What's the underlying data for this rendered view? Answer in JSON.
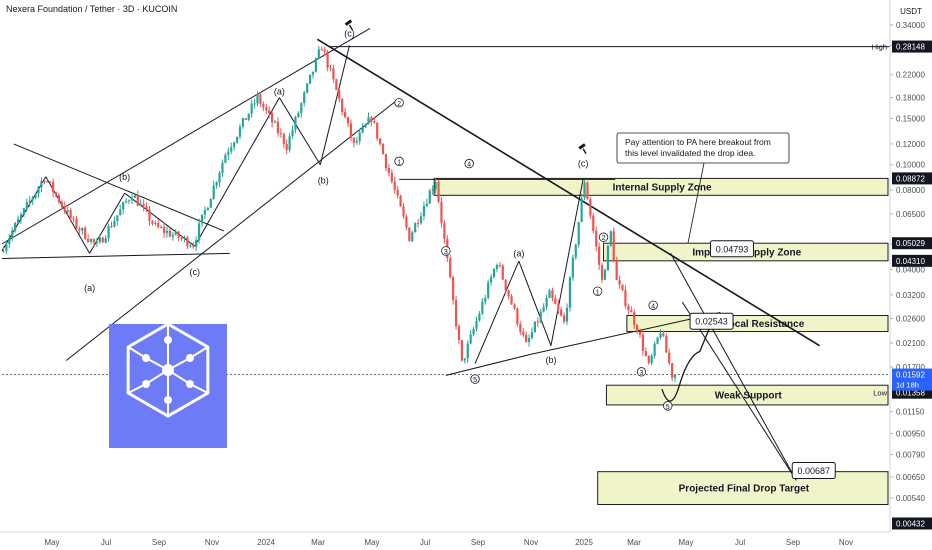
{
  "header": {
    "symbol_title": "Nexera Foundation / Tether · 3D · KUCOIN",
    "currency": "USDT"
  },
  "colors": {
    "up": "#26a69a",
    "down": "#ef5350",
    "zone_fill": "#f1f4c8",
    "zone_border": "#1e1e1e",
    "line": "#131722",
    "tag_bg": "#131722",
    "current_price_bg": "#2962ff",
    "logo": "#6d7cf6"
  },
  "chart_data": {
    "type": "candlestick",
    "y_scale": "log",
    "ylim": [
      0.0043,
      0.34
    ],
    "x_ticks": [
      "May",
      "Jul",
      "Sep",
      "Nov",
      "2024",
      "Mar",
      "May",
      "Jul",
      "Sep",
      "Nov",
      "2025",
      "Mar",
      "May",
      "Jul",
      "Sep",
      "Nov"
    ],
    "y_ticks": [
      0.34,
      0.284,
      0.22,
      0.18,
      0.15,
      0.12,
      0.1,
      0.08,
      0.065,
      0.05,
      0.04,
      0.032,
      0.026,
      0.021,
      0.017,
      0.0115,
      0.0095,
      0.0079,
      0.0065,
      0.0054
    ],
    "y_tick_labels": [
      "0.34000",
      "0.28400",
      "0.22000",
      "0.18000",
      "0.15000",
      "0.12000",
      "0.10000",
      "0.08000",
      "0.06500",
      "0.05000",
      "0.04000",
      "0.03200",
      "0.02600",
      "0.02100",
      "0.01700",
      "0.01150",
      "0.00950",
      "0.00790",
      "0.00650",
      "0.00540"
    ],
    "price_tags": [
      {
        "label": "High",
        "value": "0.28148",
        "price": 0.28148
      },
      {
        "label": "",
        "value": "0.08872",
        "price": 0.08872
      },
      {
        "label": "",
        "value": "0.05029",
        "price": 0.05029
      },
      {
        "label": "",
        "value": "0.04310",
        "price": 0.0431
      },
      {
        "label": "Low",
        "value": "0.01358",
        "price": 0.01358
      },
      {
        "label": "",
        "value": "0.00432",
        "price": 0.00432
      }
    ],
    "current_price": {
      "value": "0.01592",
      "countdown": "1d 18h",
      "price": 0.01592
    },
    "price_path": [
      {
        "t": 0,
        "p": 0.047
      },
      {
        "t": 15,
        "p": 0.09
      },
      {
        "t": 25,
        "p": 0.06
      },
      {
        "t": 33,
        "p": 0.049
      },
      {
        "t": 45,
        "p": 0.078
      },
      {
        "t": 53,
        "p": 0.058
      },
      {
        "t": 66,
        "p": 0.05
      },
      {
        "t": 77,
        "p": 0.11
      },
      {
        "t": 88,
        "p": 0.18
      },
      {
        "t": 98,
        "p": 0.118
      },
      {
        "t": 110,
        "p": 0.284
      },
      {
        "t": 121,
        "p": 0.118
      },
      {
        "t": 127,
        "p": 0.152
      },
      {
        "t": 140,
        "p": 0.053
      },
      {
        "t": 149,
        "p": 0.088
      },
      {
        "t": 158,
        "p": 0.0175
      },
      {
        "t": 170,
        "p": 0.043
      },
      {
        "t": 180,
        "p": 0.0205
      },
      {
        "t": 188,
        "p": 0.032
      },
      {
        "t": 193,
        "p": 0.025
      },
      {
        "t": 200,
        "p": 0.087
      },
      {
        "t": 206,
        "p": 0.036
      },
      {
        "t": 209,
        "p": 0.055
      },
      {
        "t": 211,
        "p": 0.036
      },
      {
        "t": 218,
        "p": 0.024
      },
      {
        "t": 222,
        "p": 0.017
      },
      {
        "t": 226,
        "p": 0.0235
      },
      {
        "t": 230,
        "p": 0.0159
      }
    ],
    "zones": [
      {
        "name": "Internal Supply Zone",
        "top": 0.08872,
        "bottom": 0.0765,
        "start": 148
      },
      {
        "name": "Important Supply Zone",
        "top": 0.05029,
        "bottom": 0.0431,
        "start": 206
      },
      {
        "name": "Local Resistance",
        "top": 0.0267,
        "bottom": 0.0232,
        "start": 214
      },
      {
        "name": "Weak Support",
        "top": 0.0145,
        "bottom": 0.0122,
        "start": 207
      },
      {
        "name": "Projected Final Drop Target",
        "top": 0.0068,
        "bottom": 0.0051,
        "start": 204
      }
    ],
    "target_labels": [
      {
        "value": "0.04793",
        "t": 244,
        "p": 0.0479
      },
      {
        "value": "0.02543",
        "t": 237,
        "p": 0.0254
      },
      {
        "value": "0.00687",
        "t": 272,
        "p": 0.00687
      }
    ],
    "wave_labels": [
      {
        "text": "(a)",
        "t": 30,
        "p": 0.034
      },
      {
        "text": "(b)",
        "t": 42,
        "p": 0.09
      },
      {
        "text": "(c)",
        "t": 66,
        "p": 0.039
      },
      {
        "text": "(a)",
        "t": 95,
        "p": 0.19
      },
      {
        "text": "(b)",
        "t": 110,
        "p": 0.087
      },
      {
        "text": "(c)",
        "t": 119,
        "p": 0.315
      },
      {
        "text": "1",
        "t": 136,
        "p": 0.103
      },
      {
        "text": "2",
        "t": 136,
        "p": 0.172
      },
      {
        "text": "3",
        "t": 152,
        "p": 0.047
      },
      {
        "text": "4",
        "t": 160,
        "p": 0.101
      },
      {
        "text": "5",
        "t": 162,
        "p": 0.0153
      },
      {
        "text": "(a)",
        "t": 177,
        "p": 0.046
      },
      {
        "text": "(b)",
        "t": 188,
        "p": 0.0181
      },
      {
        "text": "(c)",
        "t": 199,
        "p": 0.101
      },
      {
        "text": "1",
        "t": 204,
        "p": 0.033
      },
      {
        "text": "2",
        "t": 206,
        "p": 0.053
      },
      {
        "text": "3",
        "t": 219,
        "p": 0.0163
      },
      {
        "text": "4",
        "t": 223,
        "p": 0.0292
      },
      {
        "text": "5",
        "t": 228,
        "p": 0.0121
      }
    ],
    "callout": "Pay attention to PA here breakout from this level invalidated the drop idea."
  }
}
